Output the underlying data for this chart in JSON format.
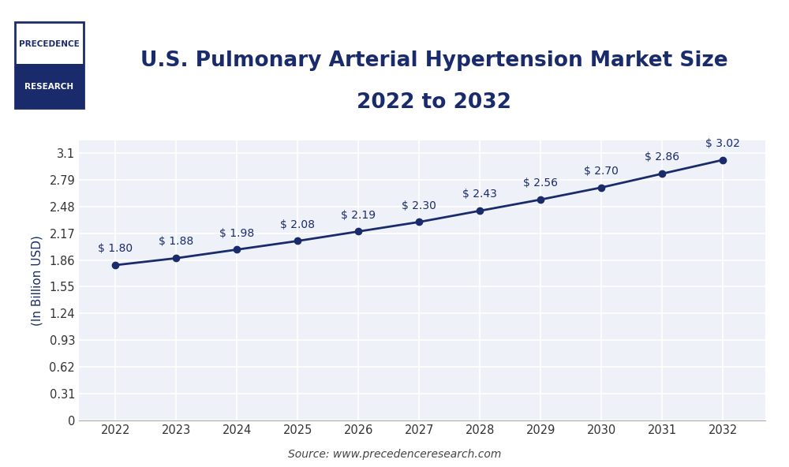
{
  "title_line1": "U.S. Pulmonary Arterial Hypertension Market Size",
  "title_line2": "2022 to 2032",
  "ylabel": "(In Billion USD)",
  "source": "Source: www.precedenceresearch.com",
  "years": [
    2022,
    2023,
    2024,
    2025,
    2026,
    2027,
    2028,
    2029,
    2030,
    2031,
    2032
  ],
  "values": [
    1.8,
    1.88,
    1.98,
    2.08,
    2.19,
    2.3,
    2.43,
    2.56,
    2.7,
    2.86,
    3.02
  ],
  "labels": [
    "$ 1.80",
    "$ 1.88",
    "$ 1.98",
    "$ 2.08",
    "$ 2.19",
    "$ 2.30",
    "$ 2.43",
    "$ 2.56",
    "$ 2.70",
    "$ 2.86",
    "$ 3.02"
  ],
  "line_color": "#1a2b6b",
  "marker_color": "#1a2b6b",
  "bg_color": "#ffffff",
  "plot_bg_color": "#eef1f8",
  "grid_color": "#ffffff",
  "title_color": "#1a2b6b",
  "label_color": "#1a2b6b",
  "axis_color": "#333333",
  "logo_dark_color": "#1a2b6b",
  "yticks": [
    0,
    0.31,
    0.62,
    0.93,
    1.24,
    1.55,
    1.86,
    2.17,
    2.48,
    2.79,
    3.1
  ],
  "ylim": [
    0,
    3.25
  ],
  "xlim_left": 2021.4,
  "xlim_right": 2032.7,
  "title_fontsize": 19,
  "label_fontsize": 10.5,
  "annot_fontsize": 10,
  "ylabel_fontsize": 11,
  "source_fontsize": 10,
  "logo_text_top": "PRECEDENCE",
  "logo_text_bottom": "RESEARCH"
}
